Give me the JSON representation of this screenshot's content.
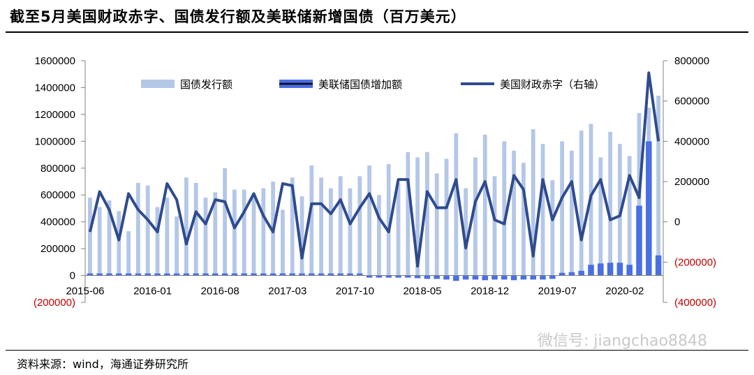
{
  "header": {
    "title": "截至5月美国财政赤字、国债发行额及美联储新增国债（百万美元）"
  },
  "footer": {
    "source": "资料来源：wind，海通证券研究所"
  },
  "watermark": {
    "text": "微信号: jiangchao8848"
  },
  "chart_data": {
    "type": "bar+line",
    "categories": [
      "2015-06",
      "2015-07",
      "2015-08",
      "2015-09",
      "2015-10",
      "2015-11",
      "2015-12",
      "2016-01",
      "2016-02",
      "2016-03",
      "2016-04",
      "2016-05",
      "2016-06",
      "2016-07",
      "2016-08",
      "2016-09",
      "2016-10",
      "2016-11",
      "2016-12",
      "2017-01",
      "2017-02",
      "2017-03",
      "2017-04",
      "2017-05",
      "2017-06",
      "2017-07",
      "2017-08",
      "2017-09",
      "2017-10",
      "2017-11",
      "2017-12",
      "2018-01",
      "2018-02",
      "2018-03",
      "2018-04",
      "2018-05",
      "2018-06",
      "2018-07",
      "2018-08",
      "2018-09",
      "2018-10",
      "2018-11",
      "2018-12",
      "2019-01",
      "2019-02",
      "2019-03",
      "2019-04",
      "2019-05",
      "2019-06",
      "2019-07",
      "2019-08",
      "2019-09",
      "2019-10",
      "2019-11",
      "2019-12",
      "2020-01",
      "2020-02",
      "2020-03",
      "2020-04",
      "2020-05"
    ],
    "x_tick_labels": [
      "2015-06",
      "2016-01",
      "2016-08",
      "2017-03",
      "2017-10",
      "2018-05",
      "2018-12",
      "2019-07",
      "2020-02"
    ],
    "left_axis": {
      "min": -200000,
      "max": 1600000,
      "ticks": [
        1600000,
        1400000,
        1200000,
        1000000,
        800000,
        600000,
        400000,
        200000,
        0,
        -200000
      ],
      "tick_labels": [
        "1600000",
        "1400000",
        "1200000",
        "1000000",
        "800000",
        "600000",
        "400000",
        "200000",
        "0",
        "(200000)"
      ]
    },
    "right_axis": {
      "min": -400000,
      "max": 800000,
      "ticks": [
        800000,
        600000,
        400000,
        200000,
        0,
        -200000,
        -400000
      ],
      "tick_labels": [
        "800000",
        "600000",
        "400000",
        "200000",
        "0",
        "(200000)",
        "(400000)"
      ]
    },
    "legend_position": "top",
    "series": [
      {
        "name": "国债发行额",
        "axis": "left",
        "style": "bar",
        "color": "#b4c7e7",
        "values": [
          580000,
          510000,
          560000,
          480000,
          330000,
          690000,
          670000,
          510000,
          580000,
          440000,
          730000,
          690000,
          580000,
          620000,
          800000,
          640000,
          640000,
          610000,
          650000,
          700000,
          490000,
          730000,
          590000,
          820000,
          730000,
          650000,
          740000,
          650000,
          740000,
          820000,
          600000,
          830000,
          690000,
          920000,
          880000,
          920000,
          760000,
          870000,
          1060000,
          650000,
          880000,
          1050000,
          740000,
          1000000,
          930000,
          840000,
          1090000,
          980000,
          710000,
          1000000,
          930000,
          1080000,
          1130000,
          880000,
          1070000,
          980000,
          890000,
          1210000,
          1250000,
          1340000
        ]
      },
      {
        "name": "美联储国债增加额",
        "axis": "left",
        "style": "bar",
        "color": "#4a6fe3",
        "values": [
          0,
          0,
          0,
          0,
          0,
          0,
          0,
          0,
          0,
          0,
          0,
          0,
          0,
          0,
          0,
          0,
          0,
          0,
          0,
          0,
          0,
          0,
          0,
          0,
          0,
          0,
          0,
          0,
          0,
          -8000,
          -10000,
          -12000,
          -15000,
          -15000,
          -20000,
          -25000,
          -25000,
          -30000,
          -40000,
          -30000,
          -30000,
          -35000,
          -30000,
          -30000,
          -35000,
          -30000,
          -30000,
          -30000,
          -25000,
          20000,
          25000,
          35000,
          80000,
          90000,
          95000,
          95000,
          80000,
          520000,
          1000000,
          150000
        ]
      },
      {
        "name": "美国财政赤字（右轴）",
        "axis": "right",
        "style": "line",
        "color": "#2f4b8f",
        "values": [
          -50000,
          150000,
          60000,
          -90000,
          140000,
          60000,
          10000,
          -50000,
          190000,
          110000,
          -110000,
          50000,
          -10000,
          110000,
          100000,
          -30000,
          50000,
          140000,
          30000,
          -50000,
          190000,
          180000,
          -180000,
          90000,
          90000,
          40000,
          110000,
          -10000,
          70000,
          140000,
          20000,
          -50000,
          210000,
          210000,
          -220000,
          150000,
          70000,
          70000,
          210000,
          -130000,
          100000,
          200000,
          10000,
          -10000,
          230000,
          160000,
          -170000,
          210000,
          10000,
          120000,
          200000,
          -90000,
          130000,
          210000,
          10000,
          30000,
          230000,
          120000,
          740000,
          400000
        ]
      }
    ]
  }
}
